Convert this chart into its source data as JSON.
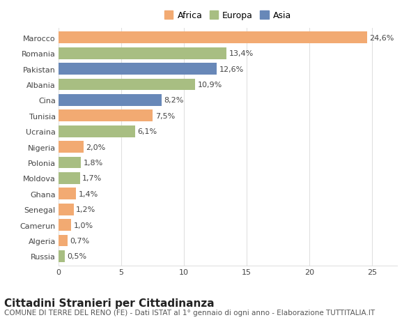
{
  "countries": [
    "Marocco",
    "Romania",
    "Pakistan",
    "Albania",
    "Cina",
    "Tunisia",
    "Ucraina",
    "Nigeria",
    "Polonia",
    "Moldova",
    "Ghana",
    "Senegal",
    "Camerun",
    "Algeria",
    "Russia"
  ],
  "values": [
    24.6,
    13.4,
    12.6,
    10.9,
    8.2,
    7.5,
    6.1,
    2.0,
    1.8,
    1.7,
    1.4,
    1.2,
    1.0,
    0.7,
    0.5
  ],
  "labels": [
    "24,6%",
    "13,4%",
    "12,6%",
    "10,9%",
    "8,2%",
    "7,5%",
    "6,1%",
    "2,0%",
    "1,8%",
    "1,7%",
    "1,4%",
    "1,2%",
    "1,0%",
    "0,7%",
    "0,5%"
  ],
  "continents": [
    "Africa",
    "Europa",
    "Asia",
    "Europa",
    "Asia",
    "Africa",
    "Europa",
    "Africa",
    "Europa",
    "Europa",
    "Africa",
    "Africa",
    "Africa",
    "Africa",
    "Europa"
  ],
  "colors": {
    "Africa": "#F2AA72",
    "Europa": "#A8BE82",
    "Asia": "#6888B8"
  },
  "title": "Cittadini Stranieri per Cittadinanza",
  "subtitle": "COMUNE DI TERRE DEL RENO (FE) - Dati ISTAT al 1° gennaio di ogni anno - Elaborazione TUTTITALIA.IT",
  "xlim": [
    0,
    27
  ],
  "xticks": [
    0,
    5,
    10,
    15,
    20,
    25
  ],
  "background_color": "#ffffff",
  "grid_color": "#e0e0e0",
  "bar_height": 0.75,
  "title_fontsize": 11,
  "subtitle_fontsize": 7.5,
  "label_fontsize": 8,
  "tick_fontsize": 8,
  "legend_fontsize": 9
}
